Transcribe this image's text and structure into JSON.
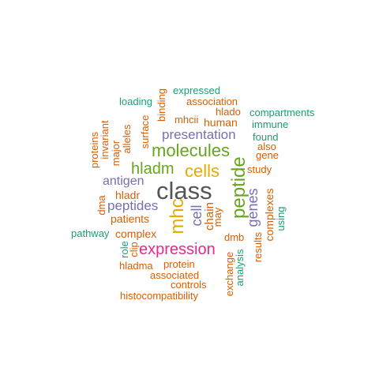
{
  "words": {
    "class": "class",
    "peptide": "peptide",
    "mhc": "mhc",
    "cells": "cells",
    "molecules": "molecules",
    "hladm": "hladm",
    "expression": "expression",
    "presentation": "presentation",
    "peptides": "peptides",
    "antigen": "antigen",
    "cell": "cell",
    "genes": "genes",
    "complexes": "complexes",
    "patients": "patients",
    "complex": "complex",
    "hladr": "hladr",
    "chain": "chain",
    "may": "may",
    "dmb": "dmb",
    "study": "study",
    "also": "also",
    "gene": "gene",
    "found": "found",
    "immune": "immune",
    "compartments": "compartments",
    "hlado": "hlado",
    "human": "human",
    "mhcii": "mhcii",
    "association": "association",
    "expressed": "expressed",
    "loading": "loading",
    "binding": "binding",
    "surface": "surface",
    "alleles": "alleles",
    "major": "major",
    "invariant": "invariant",
    "proteins": "proteins",
    "dma": "dma",
    "pathway": "pathway",
    "role": "role",
    "clip": "clip",
    "protein": "protein",
    "hladma": "hladma",
    "associated": "associated",
    "controls": "controls",
    "histocompatibility": "histocompatibility",
    "exchange": "exchange",
    "analysis": "analysis",
    "results": "results",
    "using": "using"
  },
  "colors": {
    "green": "#1b9e77",
    "orange": "#d95f02",
    "purple": "#7570b3",
    "pink": "#e7298a",
    "lime": "#66a61e",
    "gold": "#e6ab02",
    "dark": "#555555"
  }
}
